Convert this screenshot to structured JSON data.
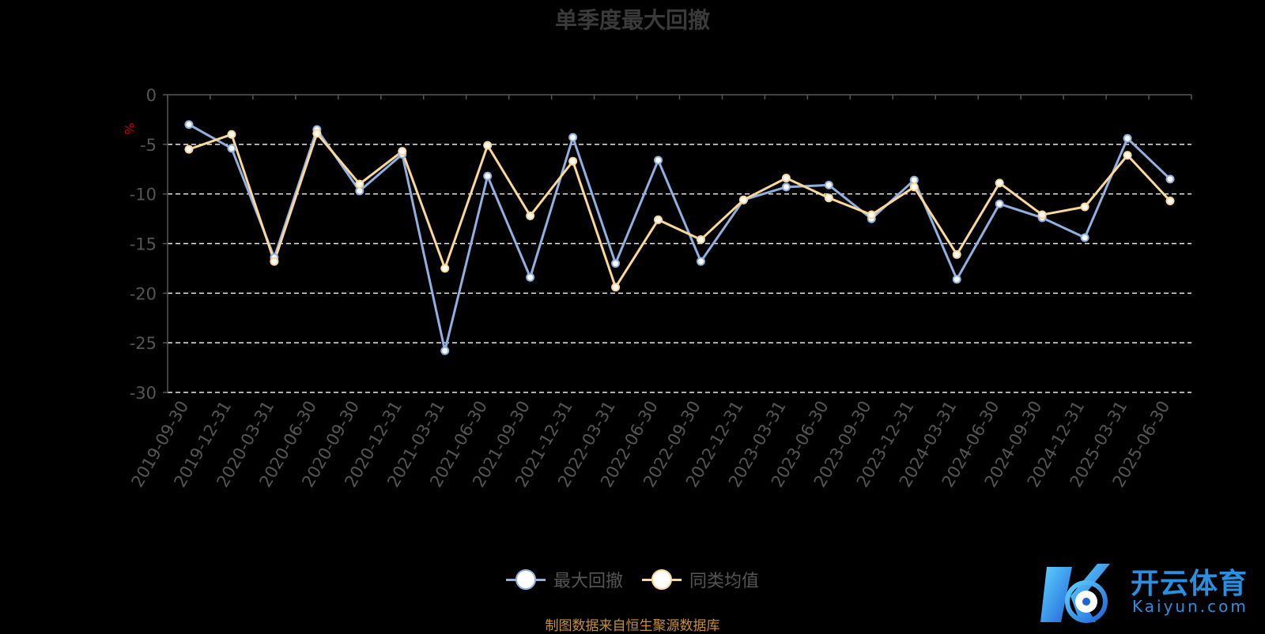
{
  "chart_data": {
    "type": "line",
    "title": "单季度最大回撤",
    "ylabel": "%",
    "ylim": [
      -30,
      0
    ],
    "yticks": [
      0,
      -5,
      -10,
      -15,
      -20,
      -25,
      -30
    ],
    "grid": true,
    "legend_position": "bottom",
    "x": [
      "2019-09-30",
      "2019-12-31",
      "2020-03-31",
      "2020-06-30",
      "2020-09-30",
      "2020-12-31",
      "2021-03-31",
      "2021-06-30",
      "2021-09-30",
      "2021-12-31",
      "2022-03-31",
      "2022-06-30",
      "2022-09-30",
      "2022-12-31",
      "2023-03-31",
      "2023-06-30",
      "2023-09-30",
      "2023-12-31",
      "2024-03-31",
      "2024-06-30",
      "2024-09-30",
      "2024-12-31",
      "2025-03-31",
      "2025-06-30"
    ],
    "series": [
      {
        "name": "最大回撤",
        "color": "#8fb0e0",
        "values": [
          -3.0,
          -5.4,
          -16.4,
          -3.5,
          -9.7,
          -6.0,
          -25.8,
          -8.2,
          -18.4,
          -4.3,
          -17.0,
          -6.6,
          -16.8,
          -10.6,
          -9.3,
          -9.1,
          -12.5,
          -8.6,
          -18.6,
          -11.0,
          -12.4,
          -14.4,
          -4.4,
          -8.5
        ]
      },
      {
        "name": "同类均值",
        "color": "#fbd79a",
        "values": [
          -5.5,
          -4.0,
          -16.8,
          -3.9,
          -9.0,
          -5.7,
          -17.5,
          -5.1,
          -12.2,
          -6.7,
          -19.4,
          -12.6,
          -14.6,
          -10.6,
          -8.4,
          -10.4,
          -12.1,
          -9.3,
          -16.1,
          -8.9,
          -12.1,
          -11.3,
          -6.1,
          -10.7
        ]
      }
    ]
  },
  "source_note": "制图数据来自恒生聚源数据库",
  "logo": {
    "name_cn": "开云体育",
    "name_en": "Kaiyun.com"
  }
}
